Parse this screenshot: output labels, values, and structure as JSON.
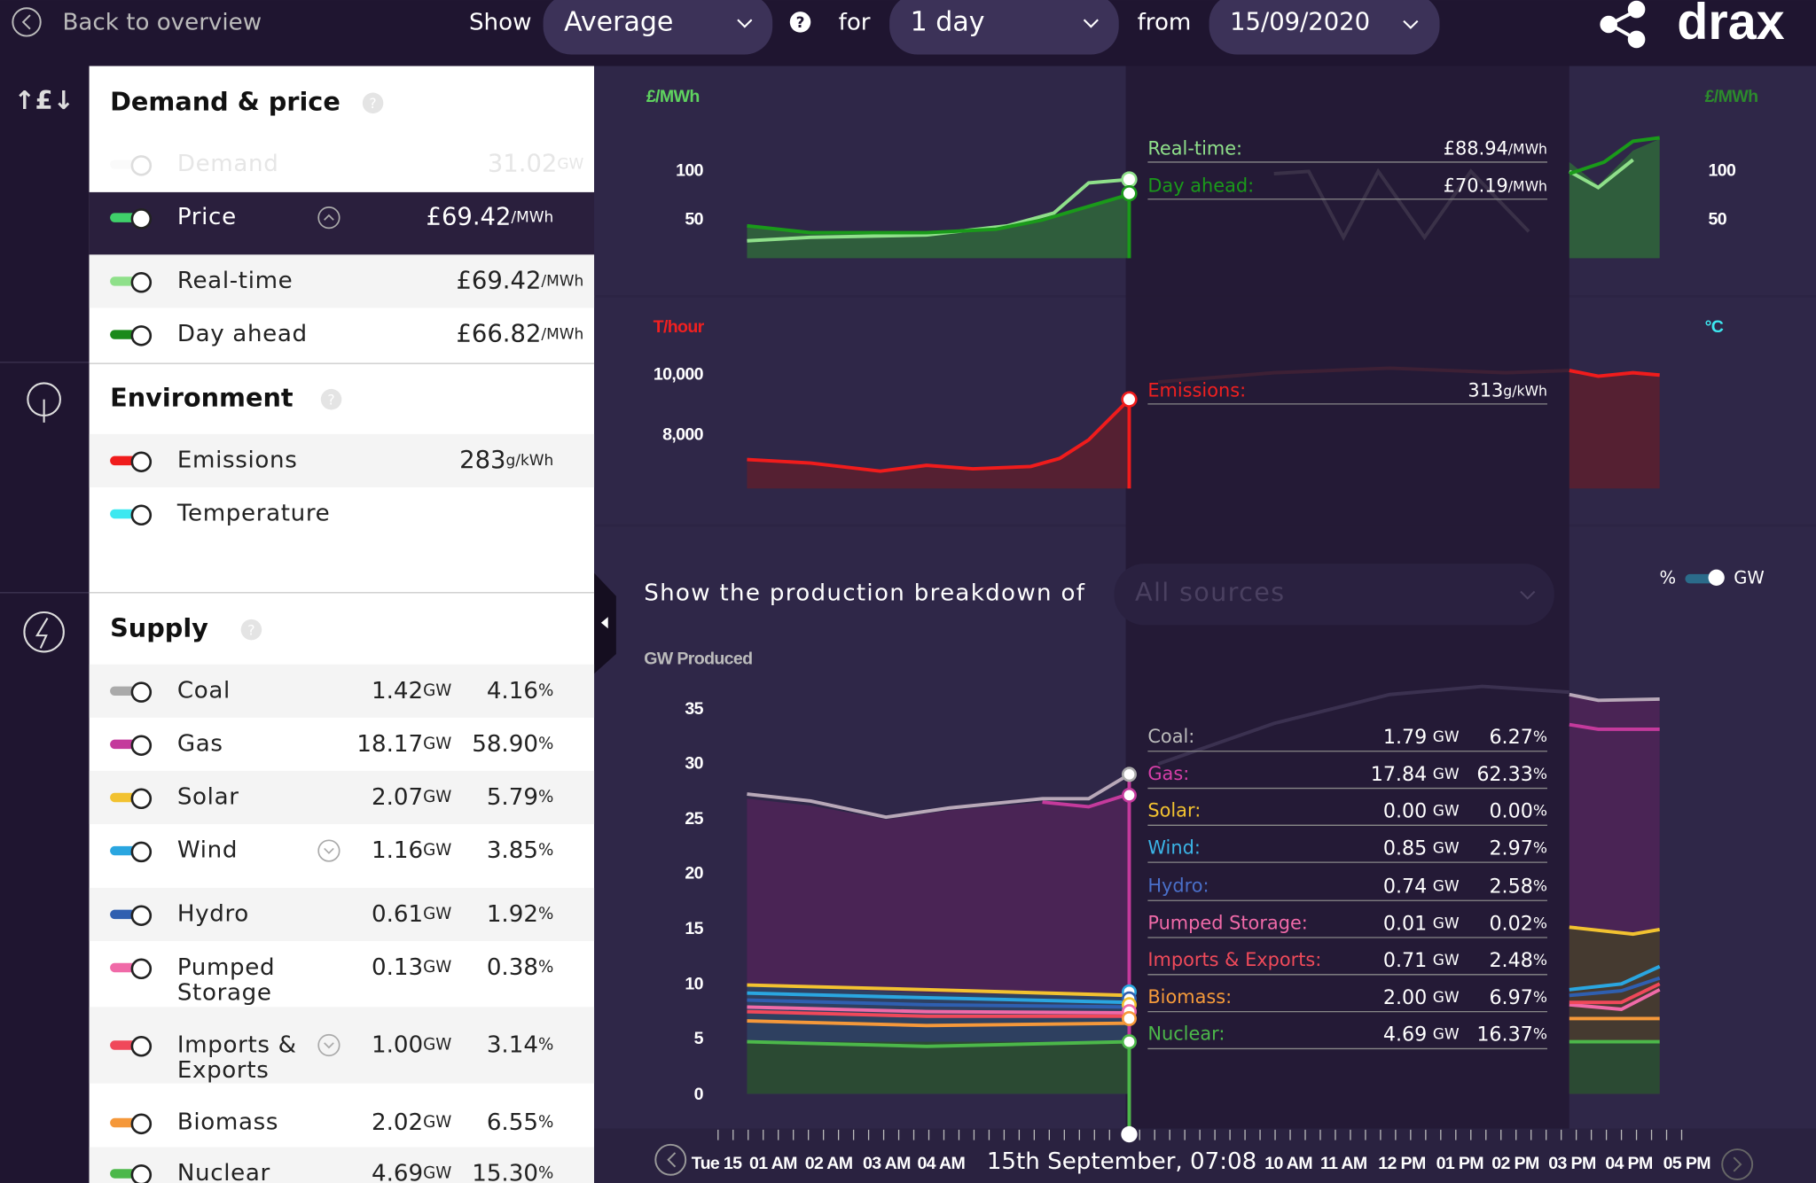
{
  "topbar": {
    "back": "Back to overview",
    "show_label": "Show",
    "show_value": "Average",
    "help": "?",
    "for_label": "for",
    "for_value": "1 day",
    "from_label": "from",
    "from_value": "15/09/2020",
    "brand": "drax"
  },
  "units": {
    "gw": "GW",
    "pct": "%",
    "mwh": "/MWh",
    "gkwh": "g/kWh"
  },
  "sidebar": {
    "demand_price": {
      "title": "Demand & price",
      "help": "?",
      "rows": [
        {
          "name": "Demand",
          "value": "31.02"
        },
        {
          "name": "Price",
          "value": "£69.42"
        },
        {
          "name": "Real-time",
          "value": "£69.42"
        },
        {
          "name": "Day ahead",
          "value": "£66.82"
        }
      ]
    },
    "environment": {
      "title": "Environment",
      "help": "?",
      "rows": [
        {
          "name": "Emissions",
          "value": "283"
        },
        {
          "name": "Temperature"
        }
      ]
    },
    "supply": {
      "title": "Supply",
      "help": "?",
      "rows": [
        {
          "name": "Coal",
          "gw": "1.42",
          "pct": "4.16"
        },
        {
          "name": "Gas",
          "gw": "18.17",
          "pct": "58.90"
        },
        {
          "name": "Solar",
          "gw": "2.07",
          "pct": "5.79"
        },
        {
          "name": "Wind",
          "gw": "1.16",
          "pct": "3.85"
        },
        {
          "name": "Hydro",
          "gw": "0.61",
          "pct": "1.92"
        },
        {
          "name": "Pumped Storage",
          "gw": "0.13",
          "pct": "0.38"
        },
        {
          "name": "Imports & Exports",
          "gw": "1.00",
          "pct": "3.14"
        },
        {
          "name": "Biomass",
          "gw": "2.02",
          "pct": "6.55"
        },
        {
          "name": "Nuclear",
          "gw": "4.69",
          "pct": "15.30"
        }
      ]
    }
  },
  "price_chart": {
    "axis_label": "£/MWh",
    "yticks": [
      "100",
      "50"
    ],
    "tooltip": [
      {
        "name": "Real-time:",
        "value": "£88.94"
      },
      {
        "name": "Day ahead:",
        "value": "£70.19"
      }
    ]
  },
  "emissions_chart": {
    "axis_label": "T/hour",
    "right_axis_label": "°C",
    "yticks": [
      "10,000",
      "8,000"
    ],
    "tooltip": {
      "name": "Emissions:",
      "value": "313"
    }
  },
  "production_chart": {
    "prompt": "Show the production breakdown of",
    "selector": "All sources",
    "toggle_left": "%",
    "toggle_right": "GW",
    "axis_label": "GW Produced",
    "yticks": [
      "35",
      "30",
      "25",
      "20",
      "15",
      "10",
      "5",
      "0"
    ],
    "tooltip": [
      {
        "name": "Coal:",
        "gw": "1.79",
        "pct": "6.27"
      },
      {
        "name": "Gas:",
        "gw": "17.84",
        "pct": "62.33"
      },
      {
        "name": "Solar:",
        "gw": "0.00",
        "pct": "0.00"
      },
      {
        "name": "Wind:",
        "gw": "0.85",
        "pct": "2.97"
      },
      {
        "name": "Hydro:",
        "gw": "0.74",
        "pct": "2.58"
      },
      {
        "name": "Pumped Storage:",
        "gw": "0.01",
        "pct": "0.02"
      },
      {
        "name": "Imports & Exports:",
        "gw": "0.71",
        "pct": "2.48"
      },
      {
        "name": "Biomass:",
        "gw": "2.00",
        "pct": "6.97"
      },
      {
        "name": "Nuclear:",
        "gw": "4.69",
        "pct": "16.37"
      }
    ]
  },
  "timeline": {
    "labels_before": [
      "Tue 15",
      "01 AM",
      "02 AM",
      "03 AM",
      "04 AM"
    ],
    "current": "15th September, 07:08",
    "labels_after": [
      "10 AM",
      "11 AM",
      "12 PM",
      "01 PM",
      "02 PM",
      "03 PM",
      "04 PM",
      "05 PM"
    ]
  }
}
